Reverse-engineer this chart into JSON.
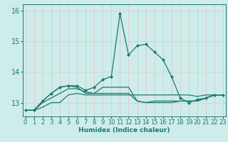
{
  "title": "",
  "xlabel": "Humidex (Indice chaleur)",
  "ylabel": "",
  "background_color": "#ceecea",
  "grid_color_h": "#c8dcda",
  "grid_color_v": "#e0c8c8",
  "line_color": "#1a7a6e",
  "x": [
    0,
    1,
    2,
    3,
    4,
    5,
    6,
    7,
    8,
    9,
    10,
    11,
    12,
    13,
    14,
    15,
    16,
    17,
    18,
    19,
    20,
    21,
    22,
    23
  ],
  "series": [
    [
      12.75,
      12.75,
      12.85,
      13.0,
      13.0,
      13.25,
      13.3,
      13.25,
      13.25,
      13.25,
      13.25,
      13.25,
      13.25,
      13.25,
      13.25,
      13.25,
      13.25,
      13.25,
      13.25,
      13.25,
      13.2,
      13.25,
      13.25,
      13.25
    ],
    [
      12.75,
      12.75,
      13.0,
      13.15,
      13.3,
      13.45,
      13.45,
      13.35,
      13.3,
      13.3,
      13.3,
      13.3,
      13.3,
      13.05,
      13.0,
      13.05,
      13.05,
      13.05,
      13.05,
      13.05,
      13.05,
      13.15,
      13.25,
      13.25
    ],
    [
      12.75,
      12.75,
      13.05,
      13.3,
      13.5,
      13.55,
      13.5,
      13.3,
      13.3,
      13.5,
      13.5,
      13.5,
      13.5,
      13.05,
      13.0,
      13.0,
      13.0,
      13.0,
      13.05,
      13.05,
      13.05,
      13.15,
      13.25,
      13.25
    ],
    [
      12.75,
      12.75,
      13.05,
      13.3,
      13.5,
      13.55,
      13.55,
      13.4,
      13.5,
      13.75,
      13.85,
      15.9,
      14.55,
      14.85,
      14.9,
      14.65,
      14.4,
      13.85,
      13.15,
      13.0,
      13.1,
      13.15,
      13.25,
      13.25
    ]
  ],
  "ylim": [
    12.55,
    16.2
  ],
  "yticks": [
    13,
    14,
    15,
    16
  ],
  "xlim": [
    -0.3,
    23.3
  ],
  "xticks": [
    0,
    1,
    2,
    3,
    4,
    5,
    6,
    7,
    8,
    9,
    10,
    11,
    12,
    13,
    14,
    15,
    16,
    17,
    18,
    19,
    20,
    21,
    22,
    23
  ]
}
